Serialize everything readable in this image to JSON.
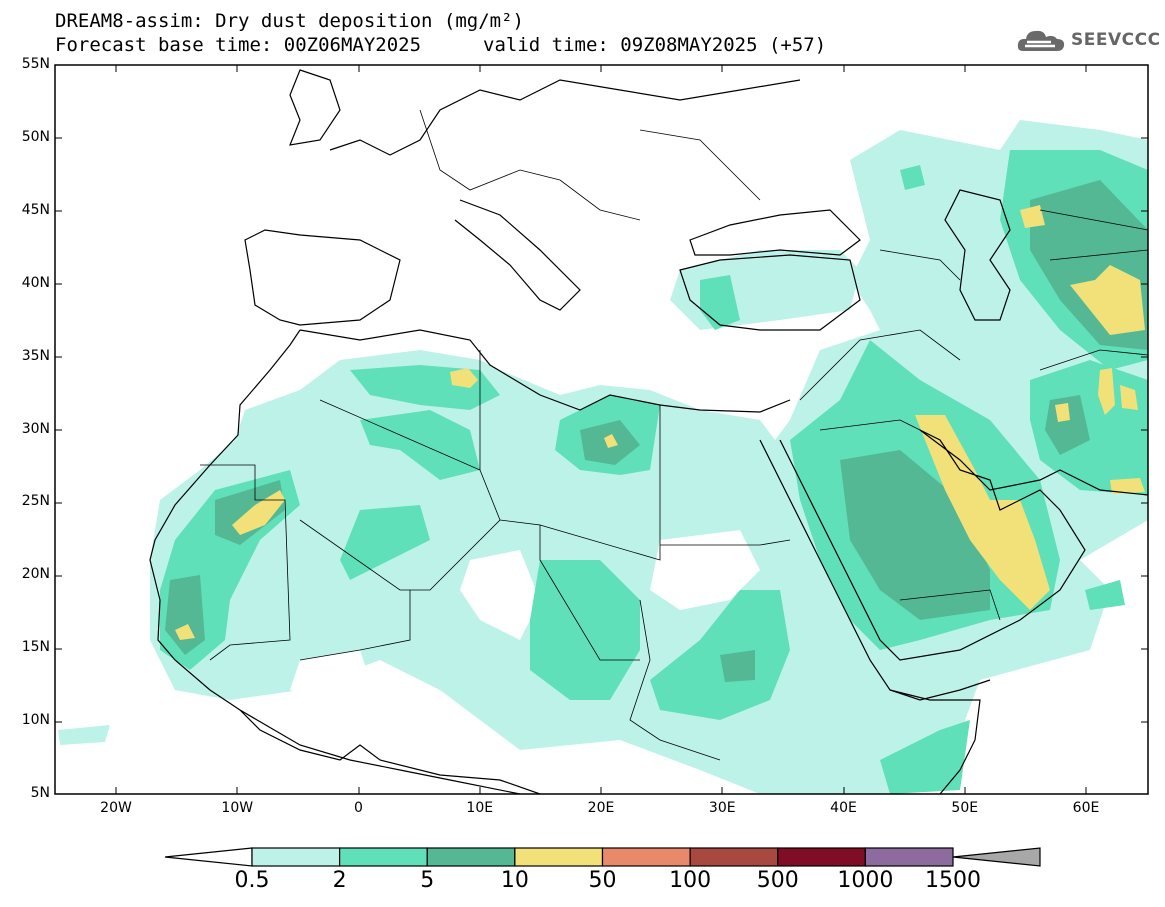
{
  "title": {
    "line1": "DREAM8-assim: Dry dust deposition (mg/m²)",
    "line2_left": "Forecast base time: 00Z06MAY2025",
    "line2_right": "valid time: 09Z08MAY2025 (+57)"
  },
  "logo": {
    "text": "SEEVCCC",
    "icon": "cloud-icon"
  },
  "map": {
    "lat_labels": [
      "55N",
      "50N",
      "45N",
      "40N",
      "35N",
      "30N",
      "25N",
      "20N",
      "15N",
      "10N",
      "5N"
    ],
    "lon_labels": [
      "20W",
      "10W",
      "0",
      "10E",
      "20E",
      "30E",
      "40E",
      "50E",
      "60E"
    ]
  },
  "colorbar": {
    "thresholds": [
      "0.5",
      "2",
      "5",
      "10",
      "50",
      "100",
      "500",
      "1000",
      "1500"
    ],
    "colors": [
      "#bdf2e9",
      "#5fe0b9",
      "#54b894",
      "#f2e079",
      "#e88a6a",
      "#a8493f",
      "#7f0d25",
      "#8d6b9e",
      "#a8a8a8"
    ]
  }
}
